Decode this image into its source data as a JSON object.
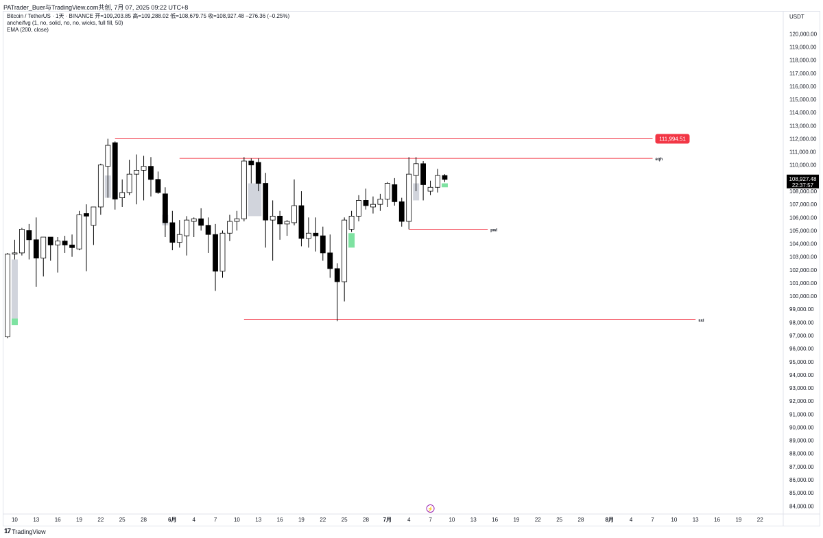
{
  "header": {
    "published": "PATrader_Buer与TradingView.com共创,  7月 07, 2025 09:22 UTC+8"
  },
  "legend": {
    "symbol_line": "Bitcoin / TetherUS · 1天 · BINANCE  开=109,203.85  高=109,288.02  低=108,679.75  收=108,927.48  −276.36 (−0.25%)",
    "indicator_1": "anche/fvg (1, no, solid, no, no, wicks, full fill, 50)",
    "indicator_2": "EMA (200, close)"
  },
  "footer": {
    "logo_text": "TradingView",
    "logo_icon": "tradingview-logo-icon"
  },
  "colors": {
    "bull_fill": "#ffffff",
    "bear_fill": "#000000",
    "level_line": "#f23645",
    "price_tag": "#f23645",
    "fvg_gray": "#d1d4dc",
    "fvg_green": "#7ee2a1"
  },
  "chart_data": {
    "type": "candlestick",
    "currency_label": "USDT",
    "ylim": [
      83700,
      120700
    ],
    "y_ticks": [
      "120,000.00",
      "119,000.00",
      "118,000.00",
      "117,000.00",
      "116,000.00",
      "115,000.00",
      "114,000.00",
      "113,000.00",
      "112,000.00",
      "111,000.00",
      "110,000.00",
      "109,000.00",
      "108,000.00",
      "107,000.00",
      "106,000.00",
      "105,000.00",
      "104,000.00",
      "103,000.00",
      "102,000.00",
      "101,000.00",
      "100,000.00",
      "99,000.00",
      "98,000.00",
      "97,000.00",
      "96,000.00",
      "95,000.00",
      "94,000.00",
      "93,000.00",
      "92,000.00",
      "91,000.00",
      "90,000.00",
      "89,000.00",
      "88,000.00",
      "87,000.00",
      "86,000.00",
      "85,000.00",
      "84,000.00"
    ],
    "x_ticks": [
      {
        "i": 1,
        "label": "10"
      },
      {
        "i": 4,
        "label": "13"
      },
      {
        "i": 7,
        "label": "16"
      },
      {
        "i": 10,
        "label": "19"
      },
      {
        "i": 13,
        "label": "22"
      },
      {
        "i": 16,
        "label": "25"
      },
      {
        "i": 19,
        "label": "28"
      },
      {
        "i": 23,
        "label": "6月"
      },
      {
        "i": 26,
        "label": "4"
      },
      {
        "i": 29,
        "label": "7"
      },
      {
        "i": 32,
        "label": "10"
      },
      {
        "i": 35,
        "label": "13"
      },
      {
        "i": 38,
        "label": "16"
      },
      {
        "i": 41,
        "label": "19"
      },
      {
        "i": 44,
        "label": "22"
      },
      {
        "i": 47,
        "label": "25"
      },
      {
        "i": 50,
        "label": "28"
      },
      {
        "i": 53,
        "label": "7月"
      },
      {
        "i": 56,
        "label": "4"
      },
      {
        "i": 59,
        "label": "7"
      },
      {
        "i": 62,
        "label": "10"
      },
      {
        "i": 65,
        "label": "13"
      },
      {
        "i": 68,
        "label": "16"
      },
      {
        "i": 71,
        "label": "19"
      },
      {
        "i": 74,
        "label": "22"
      },
      {
        "i": 77,
        "label": "25"
      },
      {
        "i": 80,
        "label": "28"
      },
      {
        "i": 84,
        "label": "8月"
      },
      {
        "i": 87,
        "label": "4"
      },
      {
        "i": 90,
        "label": "7"
      },
      {
        "i": 93,
        "label": "10"
      },
      {
        "i": 96,
        "label": "13"
      },
      {
        "i": 99,
        "label": "16"
      },
      {
        "i": 102,
        "label": "19"
      },
      {
        "i": 105,
        "label": "22"
      }
    ],
    "candles": [
      {
        "o": 96900,
        "h": 103300,
        "l": 96800,
        "c": 103200
      },
      {
        "o": 103200,
        "h": 104300,
        "l": 102800,
        "c": 103300
      },
      {
        "o": 103300,
        "h": 105200,
        "l": 103100,
        "c": 105100
      },
      {
        "o": 105000,
        "h": 105500,
        "l": 102800,
        "c": 104300
      },
      {
        "o": 104300,
        "h": 106000,
        "l": 100700,
        "c": 102900
      },
      {
        "o": 102900,
        "h": 104500,
        "l": 101500,
        "c": 104500
      },
      {
        "o": 104500,
        "h": 104500,
        "l": 102700,
        "c": 103900
      },
      {
        "o": 103900,
        "h": 104500,
        "l": 101800,
        "c": 104200
      },
      {
        "o": 104200,
        "h": 104600,
        "l": 103300,
        "c": 103900
      },
      {
        "o": 103900,
        "h": 104700,
        "l": 103000,
        "c": 103700
      },
      {
        "o": 103600,
        "h": 106500,
        "l": 103500,
        "c": 106200
      },
      {
        "o": 106300,
        "h": 107000,
        "l": 101900,
        "c": 106100
      },
      {
        "o": 105400,
        "h": 106800,
        "l": 103900,
        "c": 106800
      },
      {
        "o": 106800,
        "h": 110100,
        "l": 106200,
        "c": 110000
      },
      {
        "o": 109900,
        "h": 112000,
        "l": 107500,
        "c": 111500
      },
      {
        "o": 111700,
        "h": 111800,
        "l": 106600,
        "c": 107400
      },
      {
        "o": 107500,
        "h": 108900,
        "l": 106800,
        "c": 107900
      },
      {
        "o": 107900,
        "h": 110400,
        "l": 107700,
        "c": 109300
      },
      {
        "o": 109300,
        "h": 110800,
        "l": 107000,
        "c": 109600
      },
      {
        "o": 109600,
        "h": 110700,
        "l": 107300,
        "c": 109900
      },
      {
        "o": 109900,
        "h": 110600,
        "l": 107600,
        "c": 108900
      },
      {
        "o": 108900,
        "h": 109500,
        "l": 107800,
        "c": 107900
      },
      {
        "o": 107800,
        "h": 108300,
        "l": 104500,
        "c": 105600
      },
      {
        "o": 105600,
        "h": 106500,
        "l": 103500,
        "c": 104100
      },
      {
        "o": 104100,
        "h": 105800,
        "l": 103700,
        "c": 104700
      },
      {
        "o": 104600,
        "h": 106100,
        "l": 103100,
        "c": 105800
      },
      {
        "o": 105700,
        "h": 106000,
        "l": 104500,
        "c": 105900
      },
      {
        "o": 105900,
        "h": 106700,
        "l": 105000,
        "c": 105400
      },
      {
        "o": 105400,
        "h": 106000,
        "l": 103300,
        "c": 104700
      },
      {
        "o": 104700,
        "h": 105500,
        "l": 100400,
        "c": 101900
      },
      {
        "o": 101900,
        "h": 105000,
        "l": 101400,
        "c": 104800
      },
      {
        "o": 104800,
        "h": 106200,
        "l": 104200,
        "c": 105700
      },
      {
        "o": 105700,
        "h": 106500,
        "l": 105000,
        "c": 105900
      },
      {
        "o": 105900,
        "h": 110600,
        "l": 105700,
        "c": 110300
      },
      {
        "o": 110300,
        "h": 110500,
        "l": 108600,
        "c": 110000
      },
      {
        "o": 110200,
        "h": 110500,
        "l": 108000,
        "c": 108600
      },
      {
        "o": 108600,
        "h": 109400,
        "l": 103700,
        "c": 105800
      },
      {
        "o": 105800,
        "h": 107300,
        "l": 102700,
        "c": 106100
      },
      {
        "o": 106100,
        "h": 106500,
        "l": 104300,
        "c": 105500
      },
      {
        "o": 105500,
        "h": 105800,
        "l": 104600,
        "c": 105700
      },
      {
        "o": 105600,
        "h": 108900,
        "l": 105400,
        "c": 106900
      },
      {
        "o": 106900,
        "h": 108000,
        "l": 103800,
        "c": 104400
      },
      {
        "o": 104400,
        "h": 106000,
        "l": 103700,
        "c": 104800
      },
      {
        "o": 104800,
        "h": 106000,
        "l": 103400,
        "c": 104600
      },
      {
        "o": 104600,
        "h": 105300,
        "l": 102700,
        "c": 103300
      },
      {
        "o": 103300,
        "h": 104700,
        "l": 101400,
        "c": 102100
      },
      {
        "o": 102100,
        "h": 102500,
        "l": 98100,
        "c": 101100
      },
      {
        "o": 101100,
        "h": 106000,
        "l": 99600,
        "c": 105800
      },
      {
        "o": 105100,
        "h": 106500,
        "l": 104900,
        "c": 106100
      },
      {
        "o": 106100,
        "h": 107700,
        "l": 105700,
        "c": 107300
      },
      {
        "o": 107300,
        "h": 108200,
        "l": 106600,
        "c": 106900
      },
      {
        "o": 106800,
        "h": 107600,
        "l": 106300,
        "c": 107000
      },
      {
        "o": 107000,
        "h": 107800,
        "l": 106500,
        "c": 107400
      },
      {
        "o": 107400,
        "h": 108700,
        "l": 106800,
        "c": 108600
      },
      {
        "o": 108500,
        "h": 109000,
        "l": 106900,
        "c": 107200
      },
      {
        "o": 107200,
        "h": 107500,
        "l": 105300,
        "c": 105700
      },
      {
        "o": 105700,
        "h": 110600,
        "l": 105100,
        "c": 109300
      },
      {
        "o": 109200,
        "h": 110600,
        "l": 108000,
        "c": 110100
      },
      {
        "o": 110100,
        "h": 110300,
        "l": 107300,
        "c": 108500
      },
      {
        "o": 108000,
        "h": 108800,
        "l": 107700,
        "c": 108300
      },
      {
        "o": 108300,
        "h": 109700,
        "l": 107900,
        "c": 109200
      },
      {
        "o": 109200,
        "h": 109300,
        "l": 108700,
        "c": 108900
      }
    ],
    "fvg_boxes": [
      {
        "i0": 1,
        "i1": 1,
        "top": 102800,
        "bottom": 98300,
        "color": "gray"
      },
      {
        "i0": 1,
        "i1": 1,
        "top": 98300,
        "bottom": 97800,
        "color": "green"
      },
      {
        "i0": 14,
        "i1": 14,
        "top": 109200,
        "bottom": 107500,
        "color": "gray"
      },
      {
        "i0": 22,
        "i1": 22,
        "top": 106200,
        "bottom": 105400,
        "color": "gray"
      },
      {
        "i0": 34,
        "i1": 35,
        "top": 108600,
        "bottom": 106100,
        "color": "gray"
      },
      {
        "i0": 48,
        "i1": 48,
        "top": 104800,
        "bottom": 103700,
        "color": "green"
      },
      {
        "i0": 57,
        "i1": 57,
        "top": 108600,
        "bottom": 107300,
        "color": "gray"
      },
      {
        "i0": 61,
        "i1": 61,
        "top": 108600,
        "bottom": 108300,
        "color": "green"
      }
    ],
    "levels": [
      {
        "label": "",
        "value": 112000,
        "i0": 15,
        "i1": 90,
        "tag": "111,994.51"
      },
      {
        "label": "eqh",
        "value": 110500,
        "i0": 24,
        "i1": 90
      },
      {
        "label": "pwl",
        "value": 105100,
        "i0": 56,
        "i1": 67
      },
      {
        "label": "ssl",
        "value": 98200,
        "i0": 33,
        "i1": 96
      }
    ],
    "last_price_tag": {
      "price": "108,927.48",
      "countdown": "22:37:57"
    },
    "event_marker": {
      "i": 59,
      "symbol": "⚡"
    }
  }
}
